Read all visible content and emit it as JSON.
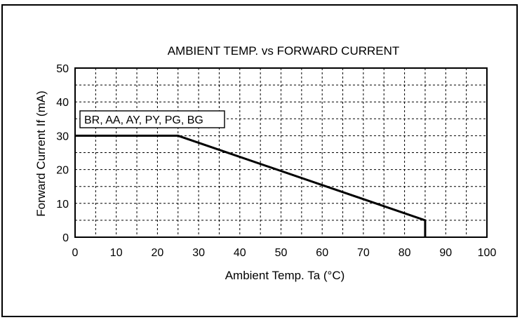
{
  "chart_data": {
    "type": "line",
    "title": "AMBIENT TEMP. vs FORWARD CURRENT",
    "xlabel": "Ambient Temp. Ta (°C)",
    "ylabel": "Forward Current If (mA)",
    "xlim": [
      0,
      100
    ],
    "ylim": [
      0,
      50
    ],
    "x_ticks": [
      0,
      10,
      20,
      30,
      40,
      50,
      60,
      70,
      80,
      90,
      100
    ],
    "y_ticks": [
      0,
      10,
      20,
      30,
      40,
      50
    ],
    "grid": true,
    "series": [
      {
        "name": "BR, AA, AY, PY, PG, BG",
        "x": [
          0,
          25,
          85,
          85
        ],
        "y": [
          30,
          30,
          5,
          0
        ]
      }
    ]
  }
}
